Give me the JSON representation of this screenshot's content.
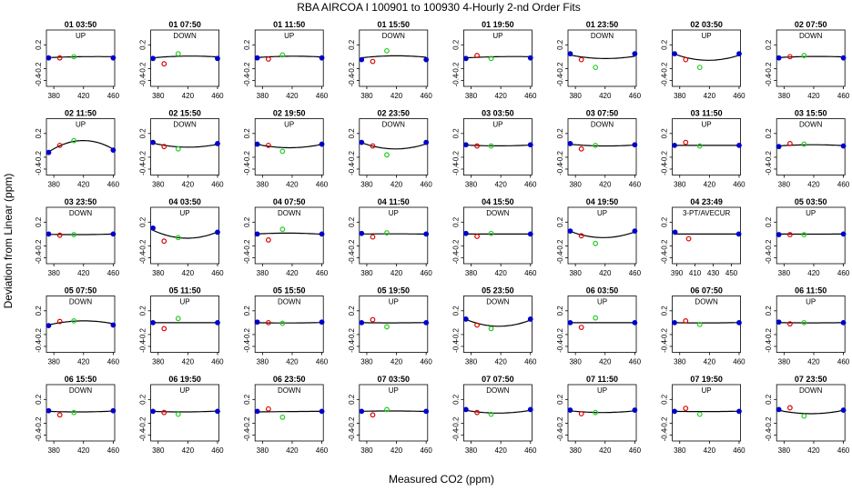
{
  "title": "RBA   AIRCOA I   100901 to 100930   4-Hourly 2-nd Order Fits",
  "xlabel": "Measured CO2 (ppm)",
  "ylabel": "Deviation from Linear (ppm)",
  "colors": {
    "low": "#0000cc",
    "mid": "#dd0000",
    "span": "#22cc22",
    "fit": "#000000",
    "start": "#aa00aa"
  },
  "chart_data": [
    {
      "type": "scatter",
      "title": "01 03:50",
      "label": "UP",
      "x": [
        373,
        388,
        407,
        460
      ],
      "y": [
        -0.02,
        -0.02,
        0.0,
        -0.02
      ],
      "fit": [
        -0.015,
        0.0,
        0.0
      ],
      "xlim": [
        370,
        462
      ],
      "ylim": [
        -0.5,
        0.45
      ]
    },
    {
      "type": "scatter",
      "title": "01 07:50",
      "label": "DOWN",
      "x": [
        373,
        388,
        407,
        460
      ],
      "y": [
        -0.03,
        -0.12,
        0.05,
        -0.03
      ],
      "fit": [
        -0.02,
        0.01,
        -0.005
      ],
      "xlim": [
        370,
        462
      ],
      "ylim": [
        -0.5,
        0.45
      ]
    },
    {
      "type": "scatter",
      "title": "01 11:50",
      "label": "UP",
      "x": [
        373,
        388,
        407,
        460
      ],
      "y": [
        -0.02,
        -0.04,
        0.03,
        -0.02
      ],
      "fit": [
        -0.015,
        0.008,
        -0.005
      ],
      "xlim": [
        370,
        462
      ],
      "ylim": [
        -0.5,
        0.45
      ]
    },
    {
      "type": "scatter",
      "title": "01 15:50",
      "label": "DOWN",
      "x": [
        373,
        388,
        407,
        460
      ],
      "y": [
        -0.05,
        -0.08,
        0.1,
        -0.05
      ],
      "fit": [
        -0.02,
        0.015,
        -0.01
      ],
      "xlim": [
        370,
        462
      ],
      "ylim": [
        -0.5,
        0.45
      ]
    },
    {
      "type": "scatter",
      "title": "01 19:50",
      "label": "UP",
      "x": [
        373,
        388,
        407,
        460
      ],
      "y": [
        -0.03,
        0.02,
        -0.03,
        -0.02
      ],
      "fit": [
        -0.02,
        0.0,
        0.0
      ],
      "xlim": [
        370,
        462
      ],
      "ylim": [
        -0.5,
        0.45
      ]
    },
    {
      "type": "scatter",
      "title": "01 23:50",
      "label": "DOWN",
      "x": [
        373,
        388,
        407,
        460
      ],
      "y": [
        0.05,
        -0.05,
        -0.18,
        0.05
      ],
      "fit": [
        0.03,
        -0.03,
        0.01
      ],
      "xlim": [
        370,
        462
      ],
      "ylim": [
        -0.5,
        0.45
      ]
    },
    {
      "type": "scatter",
      "title": "02 03:50",
      "label": "UP",
      "x": [
        373,
        388,
        407,
        460
      ],
      "y": [
        0.05,
        -0.05,
        -0.18,
        0.05
      ],
      "fit": [
        0.05,
        -0.06,
        0.03
      ],
      "xlim": [
        370,
        462
      ],
      "ylim": [
        -0.5,
        0.45
      ]
    },
    {
      "type": "scatter",
      "title": "02 07:50",
      "label": "DOWN",
      "x": [
        373,
        388,
        407,
        460
      ],
      "y": [
        -0.02,
        0.0,
        0.02,
        -0.02
      ],
      "fit": [
        -0.015,
        0.004,
        -0.004
      ],
      "xlim": [
        370,
        462
      ],
      "ylim": [
        -0.5,
        0.45
      ]
    },
    {
      "type": "scatter",
      "title": "02 11:50",
      "label": "UP",
      "x": [
        373,
        388,
        407,
        460
      ],
      "y": [
        -0.12,
        0.0,
        0.08,
        -0.08
      ],
      "fit": [
        -0.12,
        0.08,
        -0.07
      ],
      "xlim": [
        370,
        462
      ],
      "ylim": [
        -0.5,
        0.45
      ]
    },
    {
      "type": "scatter",
      "title": "02 15:50",
      "label": "DOWN",
      "x": [
        373,
        388,
        407,
        460
      ],
      "y": [
        0.05,
        -0.02,
        -0.06,
        0.03
      ],
      "fit": [
        0.04,
        -0.03,
        0.02
      ],
      "xlim": [
        370,
        462
      ],
      "ylim": [
        -0.5,
        0.45
      ]
    },
    {
      "type": "scatter",
      "title": "02 19:50",
      "label": "UP",
      "x": [
        373,
        388,
        407,
        460
      ],
      "y": [
        0.02,
        0.0,
        -0.1,
        0.02
      ],
      "fit": [
        0.02,
        -0.04,
        0.02
      ],
      "xlim": [
        370,
        462
      ],
      "ylim": [
        -0.5,
        0.45
      ]
    },
    {
      "type": "scatter",
      "title": "02 23:50",
      "label": "DOWN",
      "x": [
        373,
        388,
        407,
        460
      ],
      "y": [
        0.05,
        -0.01,
        -0.16,
        0.05
      ],
      "fit": [
        0.05,
        -0.06,
        0.03
      ],
      "xlim": [
        370,
        462
      ],
      "ylim": [
        -0.5,
        0.45
      ]
    },
    {
      "type": "scatter",
      "title": "03 03:50",
      "label": "UP",
      "x": [
        373,
        388,
        407,
        460
      ],
      "y": [
        0.01,
        -0.01,
        -0.01,
        0.01
      ],
      "fit": [
        0.005,
        -0.008,
        0.005
      ],
      "xlim": [
        370,
        462
      ],
      "ylim": [
        -0.5,
        0.45
      ]
    },
    {
      "type": "scatter",
      "title": "03 07:50",
      "label": "DOWN",
      "x": [
        373,
        388,
        407,
        460
      ],
      "y": [
        0.03,
        -0.06,
        0.0,
        0.01
      ],
      "fit": [
        0.02,
        -0.01,
        0.008
      ],
      "xlim": [
        370,
        462
      ],
      "ylim": [
        -0.5,
        0.45
      ]
    },
    {
      "type": "scatter",
      "title": "03 11:50",
      "label": "UP",
      "x": [
        373,
        388,
        407,
        460
      ],
      "y": [
        0.0,
        0.05,
        -0.01,
        0.0
      ],
      "fit": [
        0.0,
        0.0,
        0.0
      ],
      "xlim": [
        370,
        462
      ],
      "ylim": [
        -0.5,
        0.45
      ]
    },
    {
      "type": "scatter",
      "title": "03 15:50",
      "label": "DOWN",
      "x": [
        373,
        388,
        407,
        460
      ],
      "y": [
        -0.02,
        0.03,
        0.02,
        -0.01
      ],
      "fit": [
        -0.01,
        0.01,
        -0.005
      ],
      "xlim": [
        370,
        462
      ],
      "ylim": [
        -0.5,
        0.45
      ]
    },
    {
      "type": "scatter",
      "title": "03 23:50",
      "label": "DOWN",
      "x": [
        373,
        388,
        407,
        460
      ],
      "y": [
        0.0,
        -0.02,
        -0.01,
        0.0
      ],
      "fit": [
        -0.005,
        -0.01,
        0.0
      ],
      "xlim": [
        370,
        462
      ],
      "ylim": [
        -0.5,
        0.45
      ]
    },
    {
      "type": "scatter",
      "title": "04 03:50",
      "label": "UP",
      "x": [
        373,
        388,
        407,
        460
      ],
      "y": [
        0.1,
        -0.12,
        -0.06,
        0.03
      ],
      "fit": [
        0.07,
        -0.07,
        0.04
      ],
      "xlim": [
        370,
        462
      ],
      "ylim": [
        -0.5,
        0.45
      ]
    },
    {
      "type": "scatter",
      "title": "04 07:50",
      "label": "DOWN",
      "x": [
        373,
        388,
        407,
        460
      ],
      "y": [
        0.0,
        -0.1,
        0.08,
        0.0
      ],
      "fit": [
        0.0,
        0.015,
        -0.005
      ],
      "xlim": [
        370,
        462
      ],
      "ylim": [
        -0.5,
        0.45
      ]
    },
    {
      "type": "scatter",
      "title": "04 11:50",
      "label": "UP",
      "x": [
        373,
        388,
        407,
        460
      ],
      "y": [
        0.01,
        -0.05,
        0.02,
        0.0
      ],
      "fit": [
        0.0,
        0.003,
        -0.002
      ],
      "xlim": [
        370,
        462
      ],
      "ylim": [
        -0.5,
        0.45
      ]
    },
    {
      "type": "scatter",
      "title": "04 15:50",
      "label": "DOWN",
      "x": [
        373,
        388,
        407,
        460
      ],
      "y": [
        0.01,
        -0.04,
        0.01,
        0.0
      ],
      "fit": [
        0.0,
        0.0,
        0.0
      ],
      "xlim": [
        370,
        462
      ],
      "ylim": [
        -0.5,
        0.45
      ]
    },
    {
      "type": "scatter",
      "title": "04 19:50",
      "label": "UP",
      "x": [
        373,
        388,
        407,
        460
      ],
      "y": [
        0.05,
        -0.03,
        -0.16,
        0.05
      ],
      "fit": [
        0.05,
        -0.06,
        0.04
      ],
      "xlim": [
        370,
        462
      ],
      "ylim": [
        -0.5,
        0.45
      ]
    },
    {
      "type": "scatter",
      "title": "04 23:49",
      "label": "3-PT/AVECUR",
      "x": [
        388,
        403,
        458
      ],
      "y": [
        0.03,
        -0.08,
        0.0
      ],
      "fit": [
        0.0,
        0.0,
        0.0
      ],
      "xlim": [
        385,
        460
      ],
      "ylim": [
        -0.5,
        0.45
      ],
      "xticks": [
        390,
        410,
        430,
        450
      ]
    },
    {
      "type": "scatter",
      "title": "05 03:50",
      "label": "UP",
      "x": [
        373,
        388,
        407,
        460
      ],
      "y": [
        -0.01,
        -0.01,
        -0.01,
        0.0
      ],
      "fit": [
        0.0,
        -0.002,
        0.0
      ],
      "xlim": [
        370,
        462
      ],
      "ylim": [
        -0.5,
        0.45
      ]
    },
    {
      "type": "scatter",
      "title": "05 07:50",
      "label": "DOWN",
      "x": [
        373,
        388,
        407,
        460
      ],
      "y": [
        -0.05,
        0.02,
        0.03,
        -0.04
      ],
      "fit": [
        -0.04,
        0.03,
        -0.02
      ],
      "xlim": [
        370,
        462
      ],
      "ylim": [
        -0.5,
        0.45
      ]
    },
    {
      "type": "scatter",
      "title": "05 11:50",
      "label": "UP",
      "x": [
        373,
        388,
        407,
        460
      ],
      "y": [
        0.0,
        -0.1,
        0.07,
        0.0
      ],
      "fit": [
        0.0,
        0.0,
        0.0
      ],
      "xlim": [
        370,
        462
      ],
      "ylim": [
        -0.5,
        0.45
      ]
    },
    {
      "type": "scatter",
      "title": "05 15:50",
      "label": "DOWN",
      "x": [
        373,
        388,
        407,
        460
      ],
      "y": [
        0.01,
        0.0,
        -0.01,
        0.01
      ],
      "fit": [
        0.0,
        -0.005,
        0.003
      ],
      "xlim": [
        370,
        462
      ],
      "ylim": [
        -0.5,
        0.45
      ]
    },
    {
      "type": "scatter",
      "title": "05 19:50",
      "label": "UP",
      "x": [
        373,
        388,
        407,
        460
      ],
      "y": [
        0.0,
        0.05,
        -0.07,
        0.0
      ],
      "fit": [
        0.0,
        -0.003,
        0.002
      ],
      "xlim": [
        370,
        462
      ],
      "ylim": [
        -0.5,
        0.45
      ]
    },
    {
      "type": "scatter",
      "title": "05 23:50",
      "label": "DOWN",
      "x": [
        373,
        388,
        407,
        460
      ],
      "y": [
        0.06,
        -0.04,
        -0.1,
        0.06
      ],
      "fit": [
        0.06,
        -0.06,
        0.05
      ],
      "xlim": [
        370,
        462
      ],
      "ylim": [
        -0.5,
        0.45
      ]
    },
    {
      "type": "scatter",
      "title": "06 03:50",
      "label": "UP",
      "x": [
        373,
        388,
        407,
        460
      ],
      "y": [
        0.0,
        -0.08,
        0.08,
        0.0
      ],
      "fit": [
        0.0,
        0.0,
        0.0
      ],
      "xlim": [
        370,
        462
      ],
      "ylim": [
        -0.5,
        0.45
      ]
    },
    {
      "type": "scatter",
      "title": "06 07:50",
      "label": "DOWN",
      "x": [
        373,
        388,
        407,
        460
      ],
      "y": [
        0.0,
        0.03,
        -0.03,
        0.0
      ],
      "fit": [
        0.0,
        -0.004,
        0.002
      ],
      "xlim": [
        370,
        462
      ],
      "ylim": [
        -0.5,
        0.45
      ]
    },
    {
      "type": "scatter",
      "title": "06 11:50",
      "label": "UP",
      "x": [
        373,
        388,
        407,
        460
      ],
      "y": [
        0.01,
        -0.02,
        0.0,
        0.0
      ],
      "fit": [
        0.0,
        -0.003,
        0.0
      ],
      "xlim": [
        370,
        462
      ],
      "ylim": [
        -0.5,
        0.45
      ]
    },
    {
      "type": "scatter",
      "title": "06 15:50",
      "label": "DOWN",
      "x": [
        373,
        388,
        407,
        460
      ],
      "y": [
        0.01,
        -0.06,
        -0.02,
        0.01
      ],
      "fit": [
        0.0,
        -0.01,
        0.005
      ],
      "xlim": [
        370,
        462
      ],
      "ylim": [
        -0.5,
        0.45
      ]
    },
    {
      "type": "scatter",
      "title": "06 19:50",
      "label": "UP",
      "x": [
        373,
        388,
        407,
        460
      ],
      "y": [
        0.0,
        -0.02,
        -0.05,
        0.0
      ],
      "fit": [
        0.0,
        -0.01,
        0.005
      ],
      "xlim": [
        370,
        462
      ],
      "ylim": [
        -0.5,
        0.45
      ]
    },
    {
      "type": "scatter",
      "title": "06 23:50",
      "label": "DOWN",
      "x": [
        373,
        388,
        407,
        460
      ],
      "y": [
        0.0,
        0.04,
        -0.1,
        0.0
      ],
      "fit": [
        -0.01,
        -0.004,
        0.0
      ],
      "xlim": [
        370,
        462
      ],
      "ylim": [
        -0.5,
        0.45
      ]
    },
    {
      "type": "scatter",
      "title": "07 03:50",
      "label": "UP",
      "x": [
        373,
        388,
        407,
        460
      ],
      "y": [
        0.0,
        -0.06,
        0.03,
        0.0
      ],
      "fit": [
        0.0,
        0.006,
        -0.003
      ],
      "xlim": [
        370,
        462
      ],
      "ylim": [
        -0.5,
        0.45
      ]
    },
    {
      "type": "scatter",
      "title": "07 07:50",
      "label": "DOWN",
      "x": [
        373,
        388,
        407,
        460
      ],
      "y": [
        0.03,
        -0.02,
        -0.05,
        0.03
      ],
      "fit": [
        0.02,
        -0.03,
        0.02
      ],
      "xlim": [
        370,
        462
      ],
      "ylim": [
        -0.5,
        0.45
      ]
    },
    {
      "type": "scatter",
      "title": "07 11:50",
      "label": "UP",
      "x": [
        373,
        388,
        407,
        460
      ],
      "y": [
        0.02,
        -0.04,
        -0.02,
        0.02
      ],
      "fit": [
        0.01,
        -0.02,
        0.01
      ],
      "xlim": [
        370,
        462
      ],
      "ylim": [
        -0.5,
        0.45
      ]
    },
    {
      "type": "scatter",
      "title": "07 19:50",
      "label": "UP",
      "x": [
        373,
        388,
        407,
        460
      ],
      "y": [
        0.0,
        0.05,
        -0.05,
        0.0
      ],
      "fit": [
        0.0,
        -0.004,
        0.002
      ],
      "xlim": [
        370,
        462
      ],
      "ylim": [
        -0.5,
        0.45
      ]
    },
    {
      "type": "scatter",
      "title": "07 23:50",
      "label": "DOWN",
      "x": [
        373,
        388,
        407,
        460
      ],
      "y": [
        0.03,
        0.06,
        -0.08,
        0.02
      ],
      "fit": [
        0.02,
        -0.04,
        0.02
      ],
      "xlim": [
        370,
        462
      ],
      "ylim": [
        -0.5,
        0.45
      ]
    }
  ]
}
